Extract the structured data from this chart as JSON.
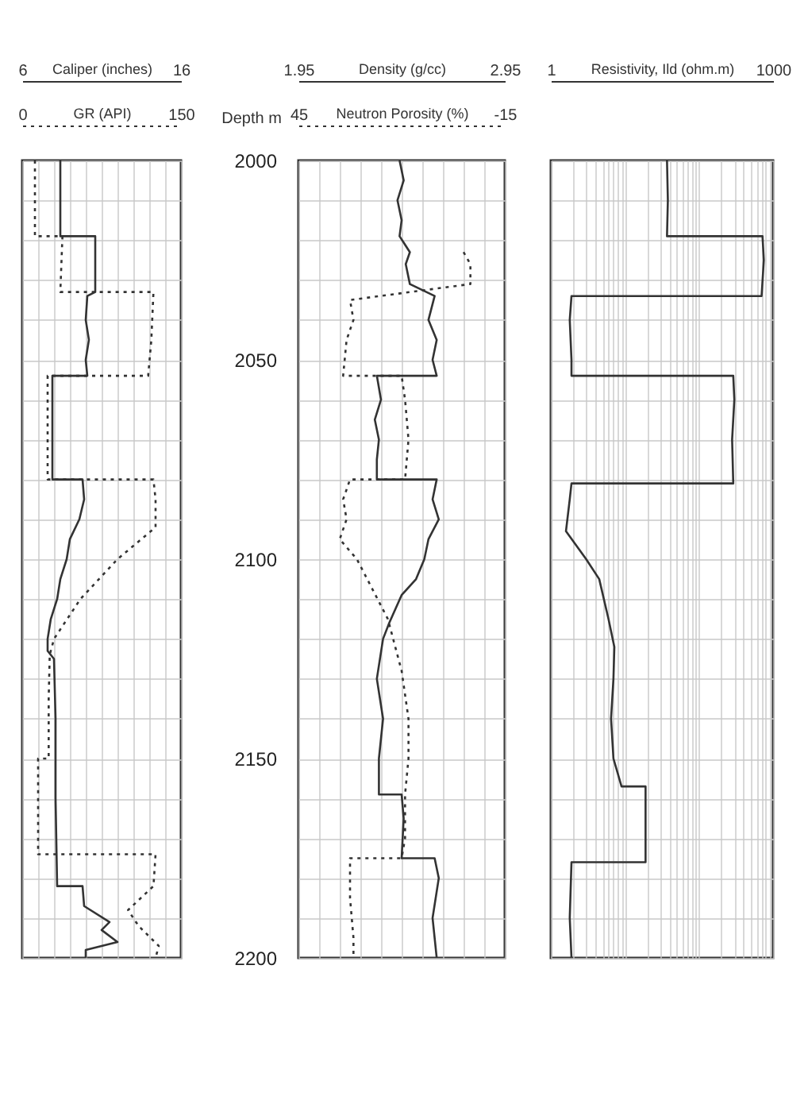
{
  "chart_data": [
    {
      "type": "line",
      "xlabel": "Caliper (inches)",
      "x2label": "GR (API)",
      "xlim": [
        6,
        16
      ],
      "x2lim": [
        0,
        150
      ],
      "xticks": [
        6,
        {
          "value": 7,
          "label": null
        },
        {
          "value": 8,
          "label": null
        },
        {
          "value": 9,
          "label": null
        },
        {
          "value": 10,
          "label": null
        },
        {
          "value": 11,
          "label": null
        },
        {
          "value": 12,
          "label": null
        },
        {
          "value": 13,
          "label": null
        },
        {
          "value": 14,
          "label": null
        },
        {
          "value": 15,
          "label": null
        },
        16
      ],
      "x2ticks": [
        0,
        150
      ],
      "ylim": [
        2200,
        2000
      ],
      "yticks": [
        2000,
        {
          "value": 2010,
          "label": null
        },
        {
          "value": 2020,
          "label": null
        },
        {
          "value": 2030,
          "label": null
        },
        {
          "value": 2040,
          "label": null
        },
        2050,
        {
          "value": 2060,
          "label": null
        },
        {
          "value": 2070,
          "label": null
        },
        {
          "value": 2080,
          "label": null
        },
        {
          "value": 2090,
          "label": null
        },
        2100,
        {
          "value": 2110,
          "label": null
        },
        {
          "value": 2120,
          "label": null
        },
        {
          "value": 2130,
          "label": null
        },
        {
          "value": 2140,
          "label": null
        },
        2150,
        {
          "value": 2160,
          "label": null
        },
        {
          "value": 2170,
          "label": null
        },
        {
          "value": 2180,
          "label": null
        },
        {
          "value": 2190,
          "label": null
        },
        2200
      ],
      "tick_labels": "x",
      "grid": true,
      "series": [
        {
          "color": "#333333",
          "line_style": "solid",
          "x": [
            8.4,
            8.4,
            10.6,
            10.6,
            10.1,
            10.0,
            10.2,
            10.0,
            10.1,
            7.9,
            7.9,
            9.8,
            9.9,
            9.6,
            9.0,
            8.8,
            8.4,
            8.2,
            7.8,
            7.6,
            7.6,
            8.0,
            8.1,
            8.1,
            8.2,
            9.8,
            9.9,
            11.5,
            11.0,
            12.0,
            10.0,
            10.0
          ],
          "values": [
            2000,
            2019,
            2019,
            2033,
            2034,
            2040,
            2045,
            2050,
            2054,
            2054,
            2080,
            2080,
            2085,
            2090,
            2095,
            2100,
            2105,
            2110,
            2115,
            2120,
            2123,
            2125,
            2140,
            2160,
            2182,
            2182,
            2187,
            2191,
            2193,
            2196,
            2198,
            2200
          ]
        },
        {
          "color": "#333333",
          "line_style": "dotted",
          "axis": "x2",
          "x": [
            12,
            12,
            38,
            36,
            124,
            122,
            119,
            24,
            24,
            124,
            126,
            126,
            90,
            55,
            30,
            26,
            25,
            25,
            15,
            15,
            126,
            124,
            100,
            110,
            129,
            126
          ],
          "values": [
            2000,
            2019,
            2019,
            2033,
            2033,
            2045,
            2054,
            2054,
            2080,
            2080,
            2085,
            2092,
            2100,
            2110,
            2120,
            2124,
            2135,
            2150,
            2150,
            2174,
            2174,
            2182,
            2188,
            2192,
            2197,
            2200
          ]
        }
      ]
    },
    {
      "type": "line",
      "xlabel": "Density (g/cc)",
      "x2label": "Neutron Porosity (%)",
      "ylabel": "Depth m",
      "xlim": [
        1.95,
        2.95
      ],
      "x2lim": [
        45,
        -15
      ],
      "xticks": [
        1.95,
        {
          "value": 2.05,
          "label": null
        },
        {
          "value": 2.15,
          "label": null
        },
        {
          "value": 2.25,
          "label": null
        },
        {
          "value": 2.35,
          "label": null
        },
        {
          "value": 2.45,
          "label": null
        },
        {
          "value": 2.55,
          "label": null
        },
        {
          "value": 2.65,
          "label": null
        },
        {
          "value": 2.75,
          "label": null
        },
        {
          "value": 2.85,
          "label": null
        },
        2.95
      ],
      "x2ticks": [
        45,
        -15
      ],
      "ylim": [
        2200,
        2000
      ],
      "yticks": [
        2000,
        {
          "value": 2010,
          "label": null
        },
        {
          "value": 2020,
          "label": null
        },
        {
          "value": 2030,
          "label": null
        },
        {
          "value": 2040,
          "label": null
        },
        2050,
        {
          "value": 2060,
          "label": null
        },
        {
          "value": 2070,
          "label": null
        },
        {
          "value": 2080,
          "label": null
        },
        {
          "value": 2090,
          "label": null
        },
        2100,
        {
          "value": 2110,
          "label": null
        },
        {
          "value": 2120,
          "label": null
        },
        {
          "value": 2130,
          "label": null
        },
        {
          "value": 2140,
          "label": null
        },
        2150,
        {
          "value": 2160,
          "label": null
        },
        {
          "value": 2170,
          "label": null
        },
        {
          "value": 2180,
          "label": null
        },
        {
          "value": 2190,
          "label": null
        },
        2200
      ],
      "grid": true,
      "series": [
        {
          "color": "#333333",
          "line_style": "solid",
          "x": [
            2.44,
            2.46,
            2.43,
            2.45,
            2.44,
            2.49,
            2.47,
            2.49,
            2.61,
            2.58,
            2.62,
            2.6,
            2.62,
            2.33,
            2.35,
            2.32,
            2.34,
            2.33,
            2.33,
            2.62,
            2.6,
            2.63,
            2.58,
            2.56,
            2.52,
            2.45,
            2.39,
            2.36,
            2.33,
            2.36,
            2.34,
            2.34,
            2.45,
            2.46,
            2.45,
            2.61,
            2.63,
            2.6,
            2.62
          ],
          "values": [
            2000,
            2005,
            2010,
            2015,
            2019,
            2023,
            2026,
            2031,
            2034,
            2040,
            2045,
            2050,
            2054,
            2054,
            2060,
            2065,
            2070,
            2075,
            2080,
            2080,
            2085,
            2090,
            2095,
            2100,
            2105,
            2109,
            2116,
            2120,
            2130,
            2140,
            2150,
            2159,
            2159,
            2165,
            2175,
            2175,
            2180,
            2190,
            2200
          ]
        },
        {
          "color": "#333333",
          "line_style": "dotted",
          "axis": "x2",
          "x": [
            -3,
            -5,
            -5,
            30,
            29,
            31,
            32,
            15,
            14,
            13,
            14,
            30,
            32,
            31,
            33,
            28,
            22,
            19,
            15,
            13,
            13,
            14,
            14,
            15,
            30,
            30,
            29,
            29
          ],
          "values": [
            2023,
            2026,
            2031,
            2035,
            2040,
            2045,
            2054,
            2054,
            2060,
            2070,
            2080,
            2080,
            2085,
            2090,
            2095,
            2100,
            2110,
            2115,
            2128,
            2140,
            2150,
            2159,
            2170,
            2175,
            2175,
            2185,
            2195,
            2200
          ]
        }
      ]
    },
    {
      "type": "line",
      "xlabel": "Resistivity, Ild (ohm.m)",
      "xlim": [
        1,
        1000
      ],
      "log": "x",
      "xticks": [
        1,
        {
          "value": 2,
          "label": null
        },
        {
          "value": 3,
          "label": null
        },
        {
          "value": 4,
          "label": null
        },
        {
          "value": 5,
          "label": null
        },
        {
          "value": 6,
          "label": null
        },
        {
          "value": 7,
          "label": null
        },
        {
          "value": 8,
          "label": null
        },
        {
          "value": 9,
          "label": null
        },
        {
          "value": 10,
          "label": null
        },
        {
          "value": 20,
          "label": null
        },
        {
          "value": 30,
          "label": null
        },
        {
          "value": 40,
          "label": null
        },
        {
          "value": 50,
          "label": null
        },
        {
          "value": 60,
          "label": null
        },
        {
          "value": 70,
          "label": null
        },
        {
          "value": 80,
          "label": null
        },
        {
          "value": 90,
          "label": null
        },
        {
          "value": 100,
          "label": null
        },
        {
          "value": 200,
          "label": null
        },
        {
          "value": 300,
          "label": null
        },
        {
          "value": 400,
          "label": null
        },
        {
          "value": 500,
          "label": null
        },
        {
          "value": 600,
          "label": null
        },
        {
          "value": 700,
          "label": null
        },
        {
          "value": 800,
          "label": null
        },
        {
          "value": 900,
          "label": null
        },
        1000
      ],
      "ylim": [
        2200,
        2000
      ],
      "yticks": [
        2000,
        {
          "value": 2010,
          "label": null
        },
        {
          "value": 2020,
          "label": null
        },
        {
          "value": 2030,
          "label": null
        },
        {
          "value": 2040,
          "label": null
        },
        2050,
        {
          "value": 2060,
          "label": null
        },
        {
          "value": 2070,
          "label": null
        },
        {
          "value": 2080,
          "label": null
        },
        {
          "value": 2090,
          "label": null
        },
        2100,
        {
          "value": 2110,
          "label": null
        },
        {
          "value": 2120,
          "label": null
        },
        {
          "value": 2130,
          "label": null
        },
        {
          "value": 2140,
          "label": null
        },
        2150,
        {
          "value": 2160,
          "label": null
        },
        {
          "value": 2170,
          "label": null
        },
        {
          "value": 2180,
          "label": null
        },
        {
          "value": 2190,
          "label": null
        },
        2200
      ],
      "tick_labels": "x",
      "grid": true,
      "series": [
        {
          "color": "#333333",
          "line_style": "solid",
          "x": [
            37,
            38,
            37,
            720,
            750,
            700,
            1.9,
            1.8,
            1.9,
            1.9,
            290,
            300,
            280,
            290,
            1.9,
            1.8,
            1.6,
            3,
            4.5,
            6,
            7.2,
            7,
            6.5,
            7,
            9,
            19,
            19,
            19,
            1.9,
            1.8,
            1.9
          ],
          "values": [
            2000,
            2010,
            2019,
            2019,
            2025,
            2034,
            2034,
            2040,
            2050,
            2054,
            2054,
            2060,
            2070,
            2081,
            2081,
            2085,
            2093,
            2100,
            2105,
            2115,
            2122,
            2130,
            2140,
            2150,
            2157,
            2157,
            2165,
            2176,
            2176,
            2190,
            2200
          ]
        }
      ]
    }
  ]
}
